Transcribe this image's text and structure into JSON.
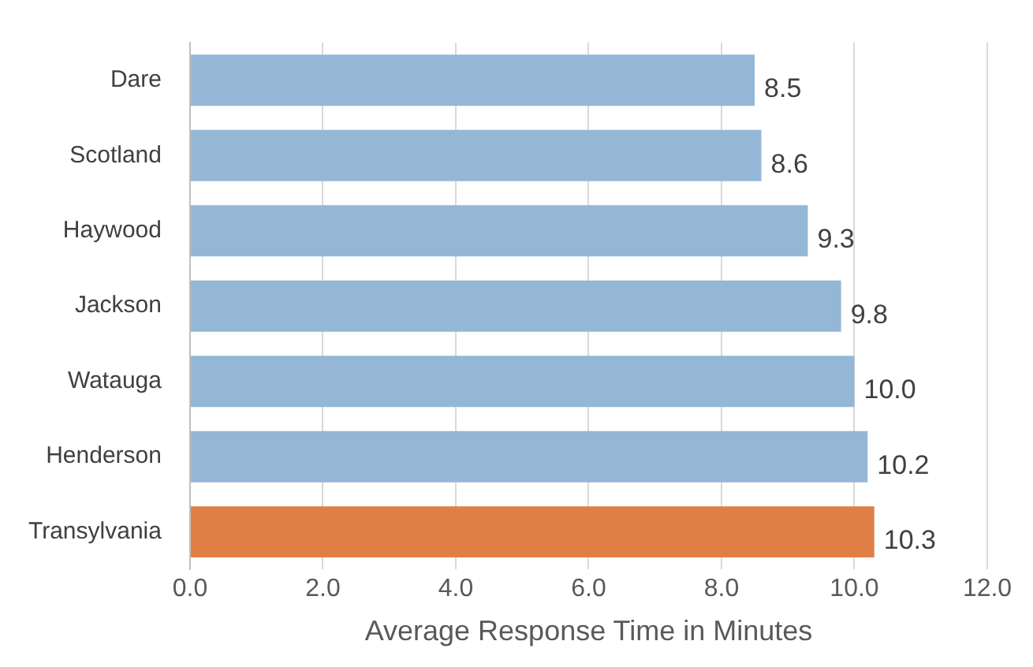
{
  "chart_data": {
    "type": "bar",
    "orientation": "horizontal",
    "xlabel": "Average Response Time in Minutes",
    "categories": [
      "Dare",
      "Scotland",
      "Haywood",
      "Jackson",
      "Watauga",
      "Henderson",
      "Transylvania"
    ],
    "values": [
      8.5,
      8.6,
      9.3,
      9.8,
      10.0,
      10.2,
      10.3
    ],
    "value_labels": [
      "8.5",
      "8.6",
      "9.3",
      "9.8",
      "10.0",
      "10.2",
      "10.3"
    ],
    "colors": [
      "#95b7d6",
      "#95b7d6",
      "#95b7d6",
      "#95b7d6",
      "#95b7d6",
      "#95b7d6",
      "#e07f45"
    ],
    "xlim": [
      0,
      12
    ],
    "xticks": [
      {
        "value": 0,
        "label": "0.0"
      },
      {
        "value": 2,
        "label": "2.0"
      },
      {
        "value": 4,
        "label": "4.0"
      },
      {
        "value": 6,
        "label": "6.0"
      },
      {
        "value": 8,
        "label": "8.0"
      },
      {
        "value": 10,
        "label": "10.0"
      },
      {
        "value": 12,
        "label": "12.0"
      }
    ],
    "grid": "x"
  }
}
